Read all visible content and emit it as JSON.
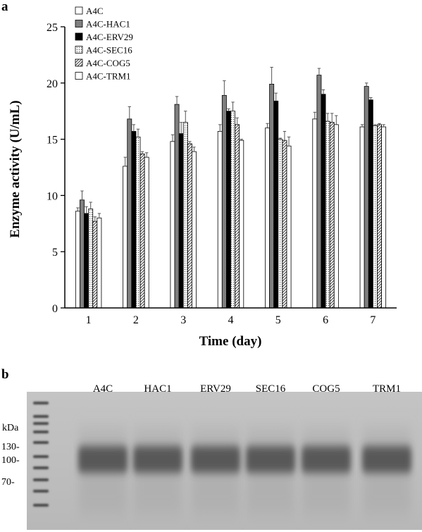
{
  "panels": {
    "a": {
      "label": "a"
    },
    "b": {
      "label": "b"
    }
  },
  "chart_data": {
    "type": "bar",
    "xlabel": "Time (day)",
    "ylabel": "Enzyme activity (U/mL)",
    "categories": [
      "1",
      "2",
      "3",
      "4",
      "5",
      "6",
      "7"
    ],
    "ylim": [
      0,
      25
    ],
    "yticks": [
      0,
      5,
      10,
      15,
      20,
      25
    ],
    "grid": false,
    "legend_position": "top-left",
    "series": [
      {
        "name": "A4C",
        "fill": "#ffffff",
        "pattern": "none",
        "values": [
          8.6,
          12.6,
          14.8,
          15.7,
          16.0,
          16.8,
          16.1
        ],
        "errors": [
          0.3,
          0.8,
          0.6,
          0.6,
          0.4,
          0.6,
          0.2
        ]
      },
      {
        "name": "A4C-HAC1",
        "fill": "#7f7f7f",
        "pattern": "none",
        "values": [
          9.6,
          16.8,
          18.1,
          18.9,
          19.9,
          20.7,
          19.7
        ],
        "errors": [
          0.8,
          1.1,
          0.7,
          1.3,
          1.5,
          0.6,
          0.3
        ]
      },
      {
        "name": "A4C-ERV29",
        "fill": "#000000",
        "pattern": "none",
        "values": [
          8.4,
          15.7,
          15.5,
          17.5,
          18.4,
          19.0,
          18.5
        ],
        "errors": [
          0.6,
          0.6,
          1.0,
          0.2,
          0.7,
          0.4,
          0.2
        ]
      },
      {
        "name": "A4C-SEC16",
        "fill": "#ffffff",
        "pattern": "dots",
        "values": [
          8.8,
          15.2,
          16.5,
          17.5,
          15.0,
          16.6,
          16.2
        ],
        "errors": [
          0.6,
          0.7,
          1.0,
          0.8,
          0.1,
          0.7,
          0.1
        ]
      },
      {
        "name": "A4C-COG5",
        "fill": "#ffffff",
        "pattern": "diag",
        "values": [
          7.7,
          13.7,
          14.6,
          16.3,
          14.9,
          16.5,
          16.3
        ],
        "errors": [
          0.4,
          0.2,
          0.2,
          0.6,
          0.8,
          0.8,
          0.1
        ]
      },
      {
        "name": "A4C-TRM1",
        "fill": "#ffffff",
        "pattern": "none",
        "values": [
          8.0,
          13.4,
          13.9,
          14.9,
          14.4,
          16.3,
          16.1
        ],
        "errors": [
          0.4,
          0.4,
          0.4,
          0.1,
          0.8,
          0.8,
          0.2
        ]
      }
    ]
  },
  "gel": {
    "lanes": [
      "A4C",
      "HAC1",
      "ERV29",
      "SEC16",
      "COG5",
      "TRM1"
    ],
    "unit_label": "kDa",
    "markers": [
      "130-",
      "100-",
      "70-"
    ],
    "background_color": "#c0c0c0",
    "band_color": "#4a4a4a"
  }
}
